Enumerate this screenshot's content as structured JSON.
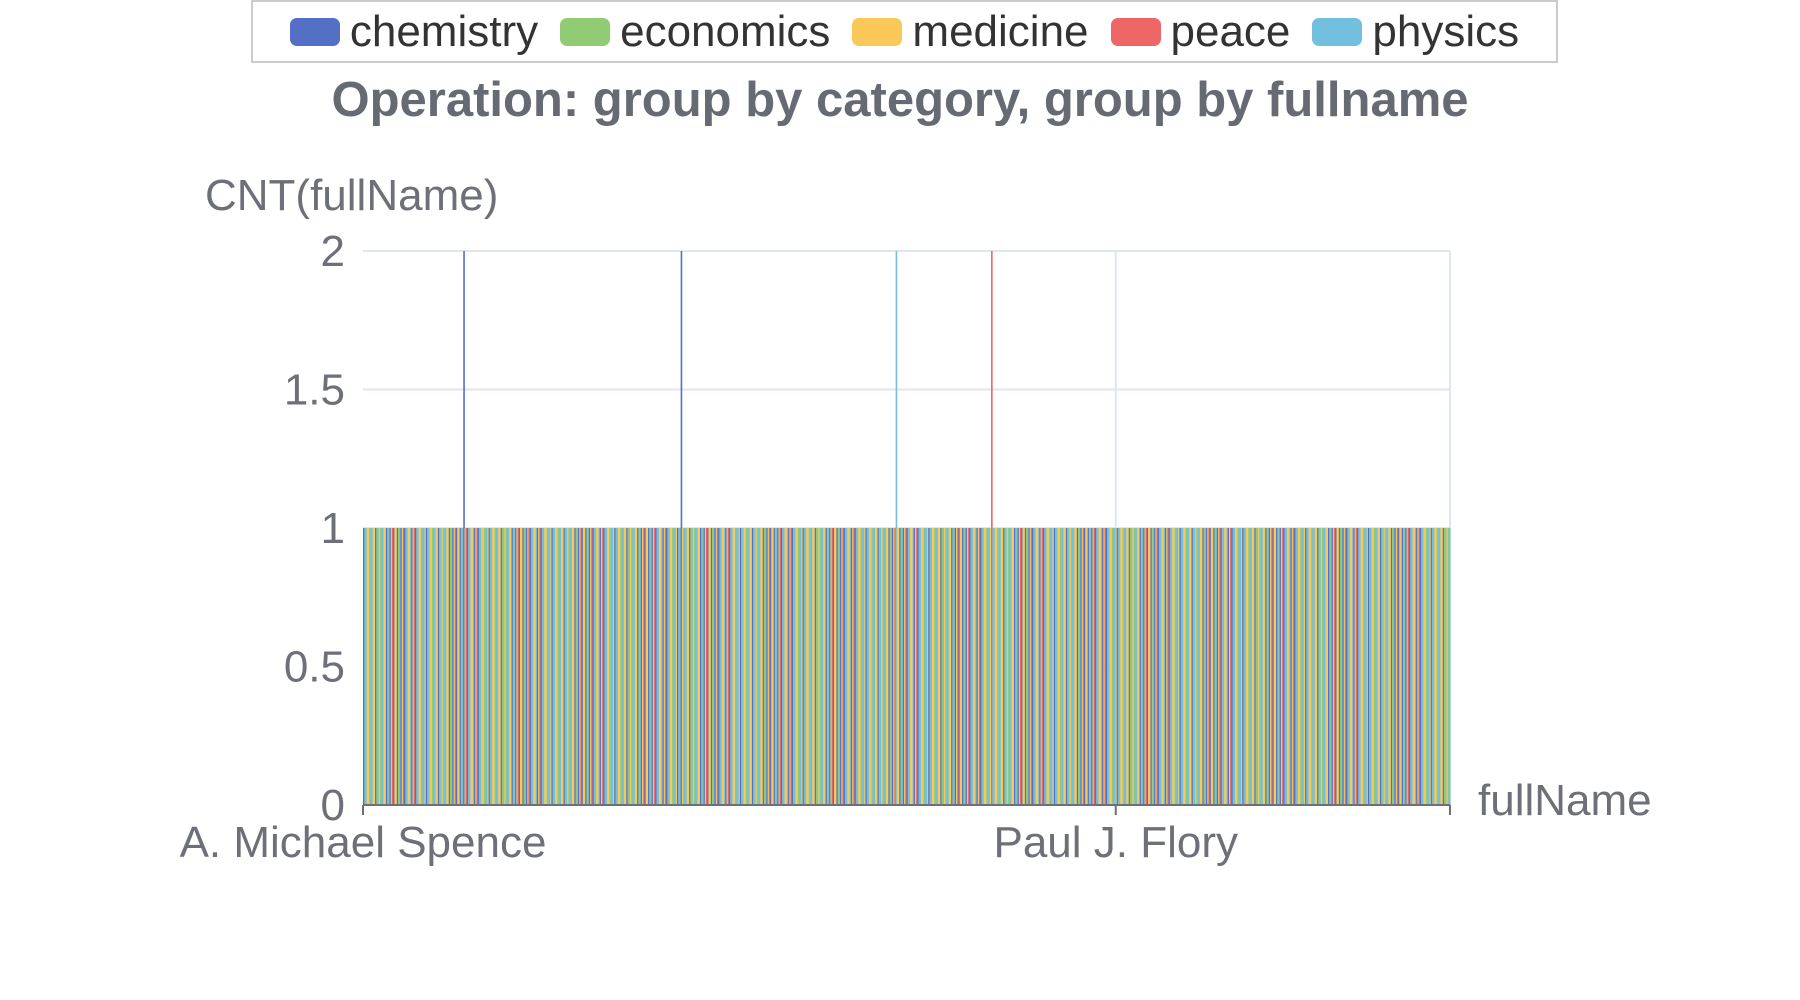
{
  "colors": {
    "chemistry": "#5470c6",
    "economics": "#91cc75",
    "medicine": "#fac858",
    "peace": "#ee6666",
    "physics": "#73c0de",
    "grid": "#e0e6f1",
    "axis": "#6e7079"
  },
  "legend": [
    {
      "label": "chemistry",
      "color": "#5470c6"
    },
    {
      "label": "economics",
      "color": "#91cc75"
    },
    {
      "label": "medicine",
      "color": "#fac858"
    },
    {
      "label": "peace",
      "color": "#ee6666"
    },
    {
      "label": "physics",
      "color": "#73c0de"
    }
  ],
  "chart_data": {
    "type": "bar",
    "title": "Operation: group by category, group by fullname",
    "xlabel": "fullName",
    "ylabel": "CNT(fullName)",
    "ylim": [
      0,
      2
    ],
    "yticks": [
      "0",
      "0.5",
      "1",
      "1.5",
      "2"
    ],
    "x_tick_labels": [
      "A. Michael Spence",
      "Paul J. Flory"
    ],
    "grid": true,
    "legend_position": "top",
    "series": [
      {
        "name": "chemistry",
        "note_values": "all 1 except highlighted",
        "value_default": 1
      },
      {
        "name": "economics",
        "value_default": 1
      },
      {
        "name": "medicine",
        "value_default": 1
      },
      {
        "name": "peace",
        "value_default": 1
      },
      {
        "name": "physics",
        "value_default": 1
      }
    ],
    "category_count": 900,
    "pattern": "chemistry,physics,medicine,economics,physics,medicine,chemistry,physics,medicine,peace,physics,chemistry,medicine,economics,physics,medicine",
    "value_2_entries": [
      {
        "index": 83,
        "series": "chemistry",
        "value": 2
      },
      {
        "index": 263,
        "series": "chemistry",
        "value": 2
      },
      {
        "index": 441,
        "series": "physics",
        "value": 2
      },
      {
        "index": 520,
        "series": "peace",
        "value": 2
      }
    ]
  }
}
